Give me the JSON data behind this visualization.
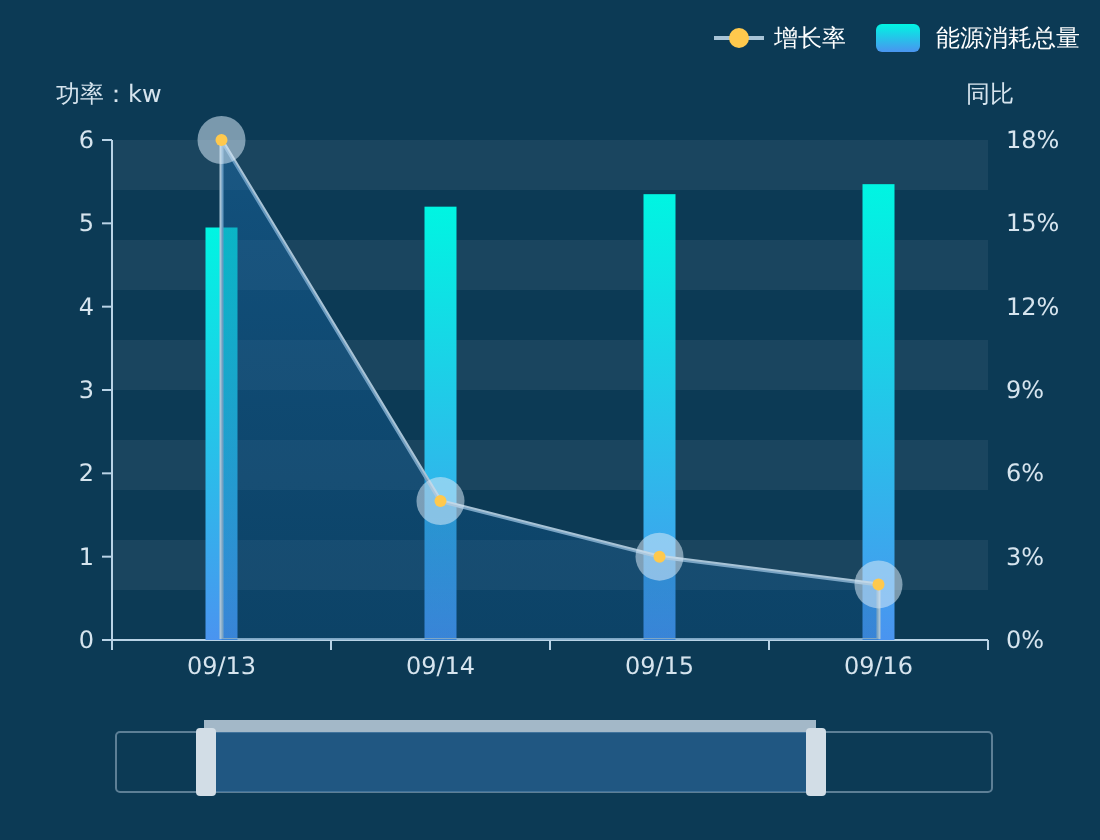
{
  "chart_data": {
    "type": "bar",
    "categories": [
      "09/13",
      "09/14",
      "09/15",
      "09/16"
    ],
    "series": [
      {
        "name": "能源消耗总量",
        "color": "#00f5e2",
        "values": [
          4.95,
          5.2,
          5.35,
          5.47
        ]
      },
      {
        "name": "增长率",
        "type": "area",
        "axis": "y2",
        "color": "#a8c3d6",
        "values": [
          18,
          5,
          3,
          2
        ]
      }
    ],
    "ylabel": "功率：kw",
    "y2label": "同比",
    "ylim": [
      0,
      6
    ],
    "yticks": [
      0,
      1,
      2,
      3,
      4,
      5,
      6
    ],
    "y2lim": [
      0,
      18
    ],
    "y2ticks": [
      {
        "value": 0,
        "label": "0%"
      },
      {
        "value": 3,
        "label": "3%"
      },
      {
        "value": 6,
        "label": "6%"
      },
      {
        "value": 9,
        "label": "9%"
      },
      {
        "value": 12,
        "label": "12%"
      },
      {
        "value": 15,
        "label": "15%"
      },
      {
        "value": 18,
        "label": "18%"
      }
    ],
    "bands": [
      {
        "axis": "y",
        "from": 5.4,
        "to": 6,
        "color": "#ffffff"
      },
      {
        "axis": "y",
        "from": 4.2,
        "to": 4.8,
        "color": "#ffffff"
      },
      {
        "axis": "y",
        "from": 3,
        "to": 3.6,
        "color": "#ffffff"
      },
      {
        "axis": "y",
        "from": 1.8,
        "to": 2.4,
        "color": "#ffffff"
      },
      {
        "axis": "y",
        "from": 0.6,
        "to": 1.2,
        "color": "#ffffff"
      }
    ],
    "marker": "circle",
    "legend": "top right",
    "grid": false
  }
}
